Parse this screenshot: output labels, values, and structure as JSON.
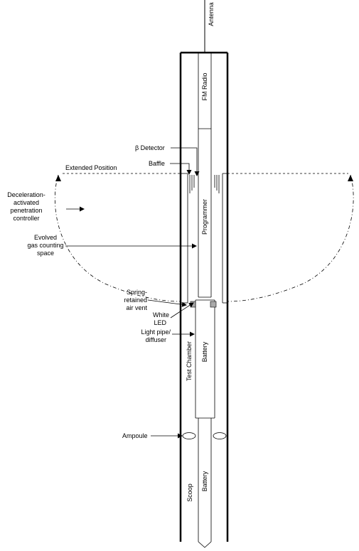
{
  "labels": {
    "antenna": "Antenna",
    "fm_radio": "FM Radio",
    "beta_detector": "β Detector",
    "baffle": "Baffle",
    "extended_position": "Extended Position",
    "decel_line1": "Deceleration-",
    "decel_line2": "activated",
    "decel_line3": "penetration",
    "decel_line4": "controller",
    "evolved_line1": "Evolved",
    "evolved_line2": "gas counting",
    "evolved_line3": "space",
    "programmer": "Programmer",
    "spring_line1": "Spring-",
    "spring_line2": "retained",
    "spring_line3": "air vent",
    "white_led_line1": "White",
    "white_led_line2": "LED",
    "light_pipe_line1": "Light pipe/",
    "light_pipe_line2": "diffuser",
    "test_chamber": "Test Chamber",
    "battery_upper": "Battery",
    "ampoule": "Ampoule",
    "scoop": "Scoop",
    "battery_lower": "Battery"
  }
}
